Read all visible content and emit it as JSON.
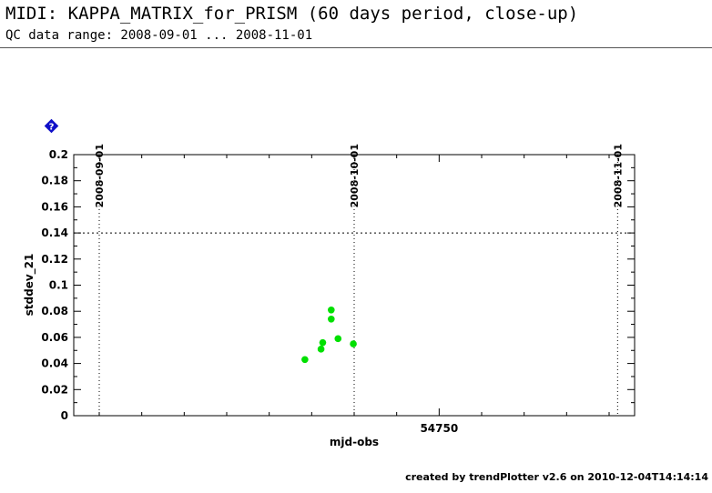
{
  "header": {
    "title": "MIDI: KAPPA_MATRIX_for_PRISM (60 days period, close-up)",
    "subtitle": "QC data range: 2008-09-01 ... 2008-11-01"
  },
  "footer": {
    "text": "created by trendPlotter v2.6 on 2010-12-04T14:14:14"
  },
  "legend_marker": {
    "icon": "info-diamond-icon",
    "glyph": "?",
    "color": "#1010c8"
  },
  "chart_data": {
    "type": "scatter",
    "xlabel": "mjd-obs",
    "ylabel": "stddev_21",
    "xlim": [
      54707,
      54773
    ],
    "ylim": [
      0,
      0.2
    ],
    "yticks": [
      0,
      0.02,
      0.04,
      0.06,
      0.08,
      0.1,
      0.12,
      0.14,
      0.16,
      0.18,
      0.2
    ],
    "ytick_labels": [
      "0",
      "0.02",
      "0.04",
      "0.06",
      "0.08",
      "0.1",
      "0.12",
      "0.14",
      "0.16",
      "0.18",
      "0.2"
    ],
    "xticks_labeled": [
      {
        "value": 54750,
        "label": "54750"
      }
    ],
    "date_markers": [
      {
        "value": 54710,
        "label": "2008-09-01"
      },
      {
        "value": 54740,
        "label": "2008-10-01"
      },
      {
        "value": 54771,
        "label": "2008-11-01"
      }
    ],
    "threshold": {
      "value": 0.14,
      "style": "dotted"
    },
    "point_color": "#00e000",
    "points": [
      {
        "x": 54734.2,
        "y": 0.043
      },
      {
        "x": 54736.1,
        "y": 0.051
      },
      {
        "x": 54736.3,
        "y": 0.056
      },
      {
        "x": 54737.3,
        "y": 0.081
      },
      {
        "x": 54737.3,
        "y": 0.074
      },
      {
        "x": 54738.1,
        "y": 0.059
      },
      {
        "x": 54739.9,
        "y": 0.055
      }
    ]
  }
}
